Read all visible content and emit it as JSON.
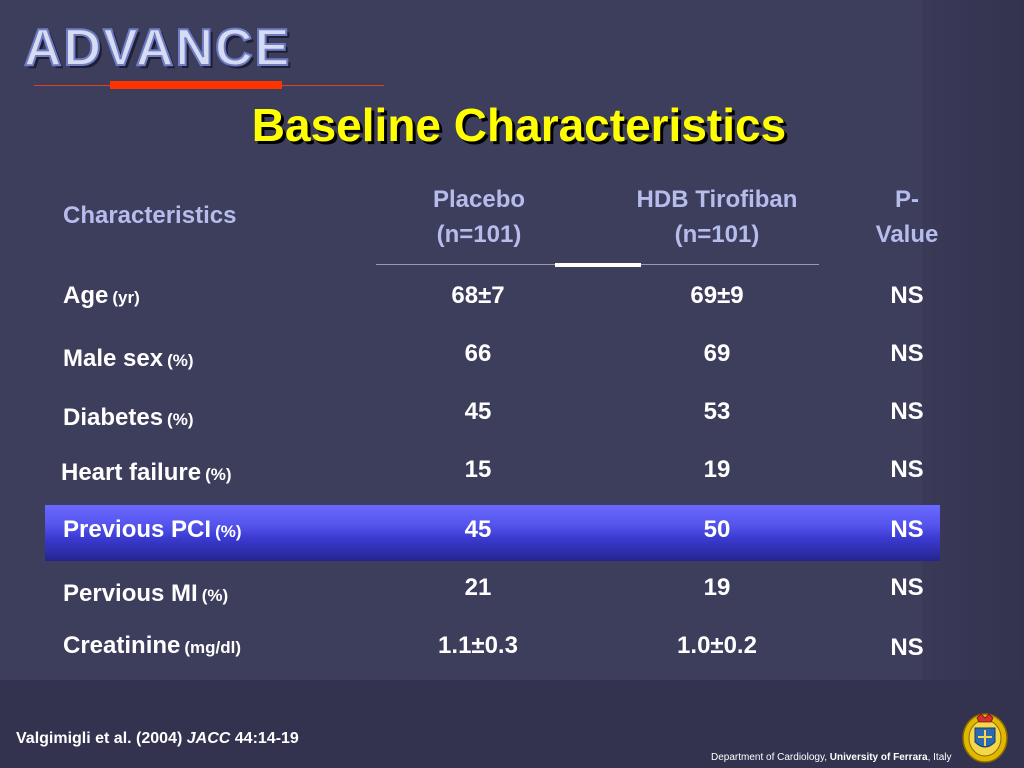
{
  "logo": {
    "text": "ADVANCE"
  },
  "title": "Baseline Characteristics",
  "header": {
    "characteristics": "Characteristics",
    "placebo_line1": "Placebo",
    "placebo_line2": "(n=101)",
    "hdb_line1": "HDB Tirofiban",
    "hdb_line2": "(n=101)",
    "p_line1": "P-",
    "p_line2": "Value"
  },
  "rows": [
    {
      "label": "Age",
      "unit": "(yr)",
      "placebo": "68±7",
      "hdb": "69±9",
      "p": "NS"
    },
    {
      "label": "Male sex",
      "unit": "(%)",
      "placebo": "66",
      "hdb": "69",
      "p": "NS"
    },
    {
      "label": "Diabetes",
      "unit": "(%)",
      "placebo": "45",
      "hdb": "53",
      "p": "NS"
    },
    {
      "label": "Heart failure",
      "unit": "(%)",
      "placebo": "15",
      "hdb": "19",
      "p": "NS"
    },
    {
      "label": "Previous PCI",
      "unit": "(%)",
      "placebo": "45",
      "hdb": "50",
      "p": "NS"
    },
    {
      "label": "Pervious MI",
      "unit": "(%)",
      "placebo": "21",
      "hdb": "19",
      "p": "NS"
    },
    {
      "label": "Creatinine",
      "unit": "(mg/dl)",
      "placebo": "1.1±0.3",
      "hdb": "1.0±0.2",
      "p": "NS"
    }
  ],
  "citation": {
    "authors": "Valgimigli et al. (2004)",
    "journal": "JACC",
    "ref": "44:14-19"
  },
  "footer": {
    "dept": "Department of Cardiology,",
    "university": "University of Ferrara",
    "country": ", Italy"
  },
  "colors": {
    "title": "#ffff00",
    "header": "#b6bcec",
    "highlight": "#5555ee",
    "accent": "#ff3300"
  }
}
